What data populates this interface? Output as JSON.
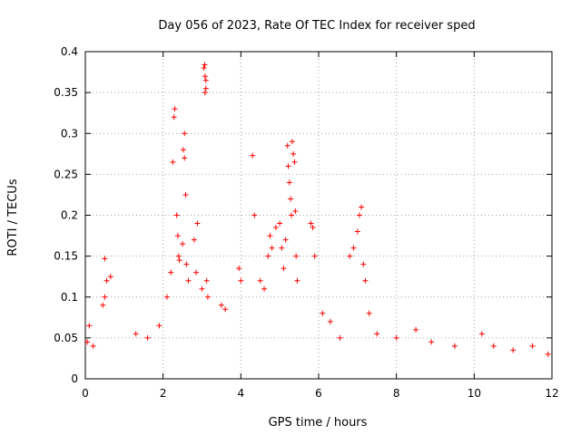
{
  "chart_data": {
    "type": "scatter",
    "title": "Day 056 of 2023, Rate Of TEC Index for receiver sped",
    "xlabel": "GPS time / hours",
    "ylabel": "ROTI / TECUs",
    "xlim": [
      0,
      12
    ],
    "ylim": [
      0,
      0.4
    ],
    "xticks": [
      0,
      2,
      4,
      6,
      8,
      10,
      12
    ],
    "xtick_labels": [
      "0",
      "2",
      "4",
      "6",
      "8",
      "10",
      "12"
    ],
    "yticks": [
      0,
      0.05,
      0.1,
      0.15,
      0.2,
      0.25,
      0.3,
      0.35,
      0.4
    ],
    "ytick_labels": [
      "0",
      "0.05",
      "0.1",
      "0.15",
      "0.2",
      "0.25",
      "0.3",
      "0.35",
      "0.4"
    ],
    "grid": true,
    "marker": "+",
    "marker_color": "#ff0000",
    "series": [
      {
        "name": "ROTI",
        "points": [
          [
            0.05,
            0.045
          ],
          [
            0.1,
            0.065
          ],
          [
            0.2,
            0.04
          ],
          [
            0.45,
            0.09
          ],
          [
            0.5,
            0.1
          ],
          [
            0.5,
            0.147
          ],
          [
            0.55,
            0.12
          ],
          [
            0.65,
            0.125
          ],
          [
            1.3,
            0.055
          ],
          [
            1.6,
            0.05
          ],
          [
            1.9,
            0.065
          ],
          [
            2.1,
            0.1
          ],
          [
            2.2,
            0.13
          ],
          [
            2.25,
            0.265
          ],
          [
            2.28,
            0.32
          ],
          [
            2.3,
            0.33
          ],
          [
            2.35,
            0.2
          ],
          [
            2.38,
            0.175
          ],
          [
            2.4,
            0.15
          ],
          [
            2.42,
            0.145
          ],
          [
            2.5,
            0.165
          ],
          [
            2.52,
            0.28
          ],
          [
            2.55,
            0.27
          ],
          [
            2.55,
            0.3
          ],
          [
            2.58,
            0.225
          ],
          [
            2.6,
            0.14
          ],
          [
            2.65,
            0.12
          ],
          [
            2.8,
            0.17
          ],
          [
            2.85,
            0.13
          ],
          [
            2.88,
            0.19
          ],
          [
            3.0,
            0.11
          ],
          [
            3.05,
            0.38
          ],
          [
            3.07,
            0.384
          ],
          [
            3.08,
            0.37
          ],
          [
            3.08,
            0.35
          ],
          [
            3.1,
            0.355
          ],
          [
            3.1,
            0.365
          ],
          [
            3.12,
            0.12
          ],
          [
            3.15,
            0.1
          ],
          [
            3.5,
            0.09
          ],
          [
            3.6,
            0.085
          ],
          [
            3.95,
            0.135
          ],
          [
            4.0,
            0.12
          ],
          [
            4.3,
            0.273
          ],
          [
            4.35,
            0.2
          ],
          [
            4.5,
            0.12
          ],
          [
            4.6,
            0.11
          ],
          [
            4.7,
            0.15
          ],
          [
            4.75,
            0.175
          ],
          [
            4.8,
            0.16
          ],
          [
            4.9,
            0.185
          ],
          [
            5.0,
            0.19
          ],
          [
            5.05,
            0.16
          ],
          [
            5.1,
            0.135
          ],
          [
            5.15,
            0.17
          ],
          [
            5.2,
            0.285
          ],
          [
            5.22,
            0.26
          ],
          [
            5.25,
            0.24
          ],
          [
            5.28,
            0.22
          ],
          [
            5.3,
            0.2
          ],
          [
            5.32,
            0.29
          ],
          [
            5.35,
            0.275
          ],
          [
            5.38,
            0.265
          ],
          [
            5.4,
            0.205
          ],
          [
            5.42,
            0.15
          ],
          [
            5.45,
            0.12
          ],
          [
            5.8,
            0.19
          ],
          [
            5.85,
            0.185
          ],
          [
            5.9,
            0.15
          ],
          [
            6.1,
            0.08
          ],
          [
            6.3,
            0.07
          ],
          [
            6.55,
            0.05
          ],
          [
            6.8,
            0.15
          ],
          [
            6.9,
            0.16
          ],
          [
            7.0,
            0.18
          ],
          [
            7.05,
            0.2
          ],
          [
            7.1,
            0.21
          ],
          [
            7.15,
            0.14
          ],
          [
            7.2,
            0.12
          ],
          [
            7.3,
            0.08
          ],
          [
            7.5,
            0.055
          ],
          [
            8.0,
            0.05
          ],
          [
            8.5,
            0.06
          ],
          [
            8.9,
            0.045
          ],
          [
            9.5,
            0.04
          ],
          [
            10.2,
            0.055
          ],
          [
            10.5,
            0.04
          ],
          [
            11.0,
            0.035
          ],
          [
            11.5,
            0.04
          ],
          [
            11.9,
            0.03
          ]
        ]
      }
    ]
  }
}
